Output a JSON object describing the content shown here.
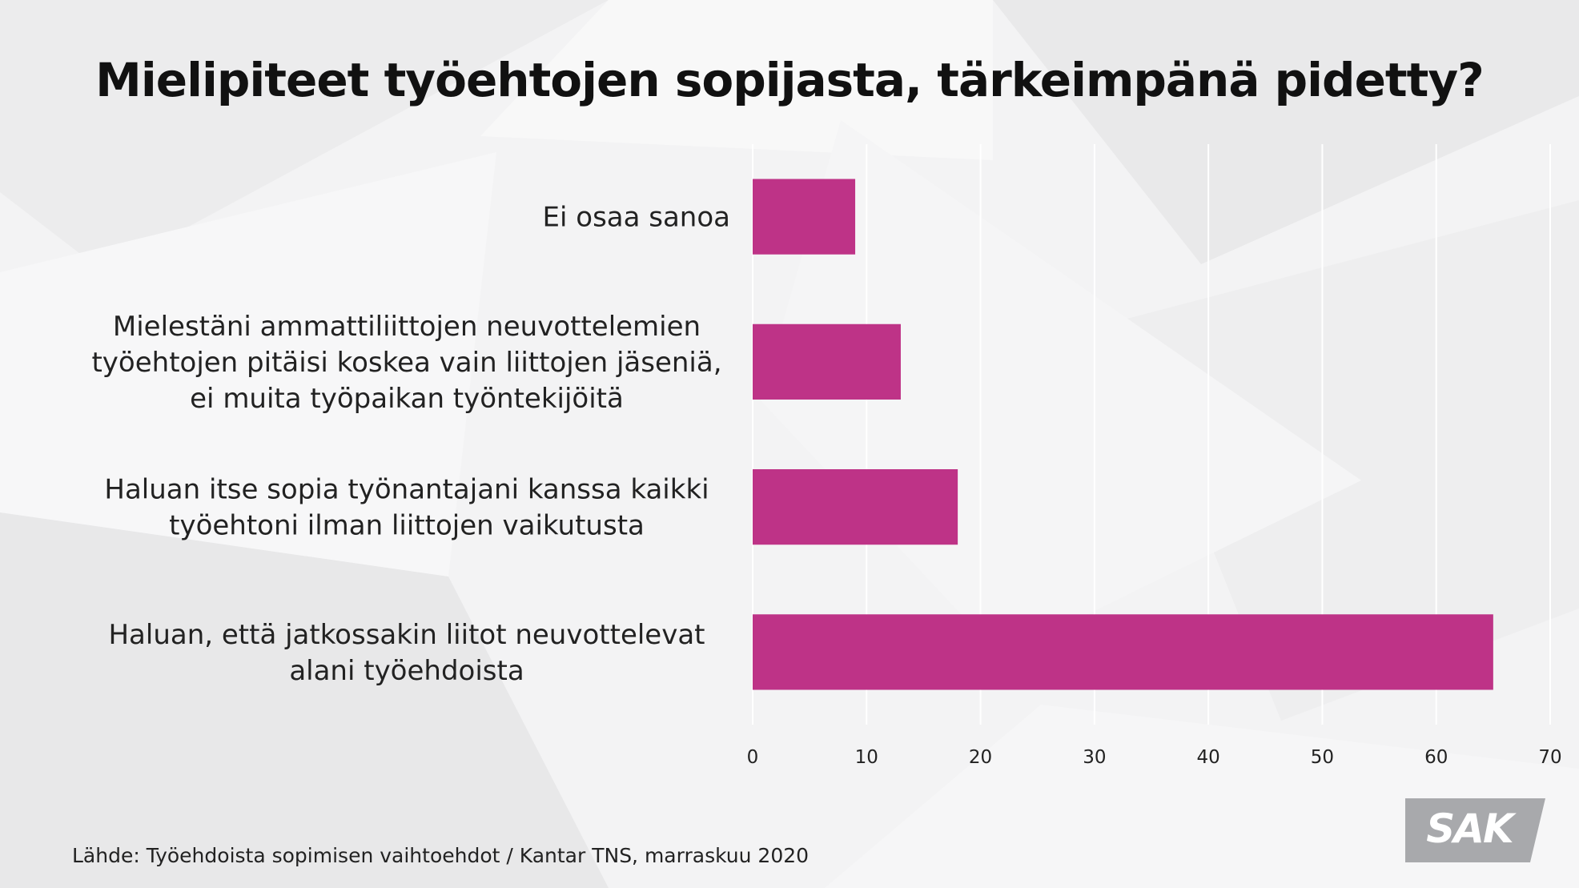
{
  "title": "Mielipiteet työehtojen sopijasta, tärkeimpänä pidetty?",
  "source": "Lähde: Työehdoista sopimisen vaihtoehdot / Kantar TNS, marraskuu 2020",
  "logo_text": "SAK",
  "colors": {
    "bar": "#be3387",
    "grid": "#ffffff",
    "logo_bg": "#a8a9ac",
    "text": "#222222"
  },
  "chart_data": {
    "type": "bar",
    "orientation": "horizontal",
    "categories": [
      [
        "Ei osaa sanoa"
      ],
      [
        "Mielestäni ammattiliittojen neuvottelemien",
        "työehtojen pitäisi koskea vain liittojen jäseniä,",
        "ei muita työpaikan työntekijöitä"
      ],
      [
        "Haluan itse sopia työnantajani kanssa kaikki",
        "työehtoni ilman liittojen vaikutusta"
      ],
      [
        "Haluan, että jatkossakin liitot neuvottelevat",
        "alani työehdoista"
      ]
    ],
    "values": [
      9,
      13,
      18,
      65
    ],
    "xlim": [
      0,
      70
    ],
    "xticks": [
      0,
      10,
      20,
      30,
      40,
      50,
      60,
      70
    ],
    "title": "Mielipiteet työehtojen sopijasta, tärkeimpänä pidetty?",
    "xlabel": "",
    "ylabel": "",
    "grid": "vertical"
  }
}
